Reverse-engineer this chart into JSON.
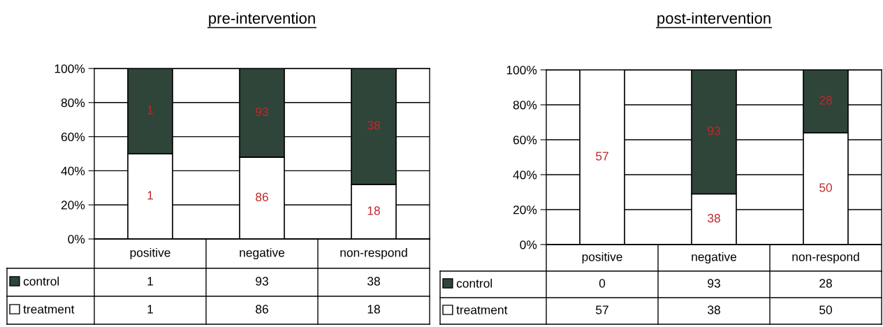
{
  "chart_data": [
    {
      "type": "bar",
      "stacked": true,
      "title": "pre-intervention",
      "categories": [
        "positive",
        "negative",
        "non-respond"
      ],
      "ylim": [
        0,
        100
      ],
      "yticks": [
        {
          "value": 0,
          "label": "0%"
        },
        {
          "value": 20,
          "label": "20%"
        },
        {
          "value": 40,
          "label": "40%"
        },
        {
          "value": 60,
          "label": "60%"
        },
        {
          "value": 80,
          "label": "80%"
        },
        {
          "value": 100,
          "label": "100%"
        }
      ],
      "grid": "y",
      "legend": "bottom",
      "series": [
        {
          "name": "treatment",
          "color": "#ffffff",
          "values": [
            50,
            48,
            32
          ]
        },
        {
          "name": "control",
          "color": "#2f4539",
          "values": [
            50,
            52,
            68
          ]
        }
      ],
      "annotations": [
        "1",
        "86",
        "18",
        "1",
        "93",
        "38",
        "1",
        "93",
        "38",
        "1",
        "86",
        "18"
      ]
    },
    {
      "type": "bar",
      "stacked": true,
      "title": "post-intervention",
      "categories": [
        "positive",
        "negative",
        "non-respond"
      ],
      "ylim": [
        0,
        100
      ],
      "yticks": [
        {
          "value": 0,
          "label": "0%"
        },
        {
          "value": 20,
          "label": "20%"
        },
        {
          "value": 40,
          "label": "40%"
        },
        {
          "value": 60,
          "label": "60%"
        },
        {
          "value": 80,
          "label": "80%"
        },
        {
          "value": 100,
          "label": "100%"
        }
      ],
      "grid": "y",
      "legend": "bottom",
      "series": [
        {
          "name": "treatment",
          "color": "#ffffff",
          "values": [
            100,
            29,
            64
          ]
        },
        {
          "name": "control",
          "color": "#2f4539",
          "values": [
            0,
            71,
            36
          ]
        }
      ],
      "annotations": [
        "57",
        "38",
        "50",
        "93",
        "28",
        "0",
        "93",
        "28",
        "57",
        "38",
        "50"
      ]
    }
  ]
}
